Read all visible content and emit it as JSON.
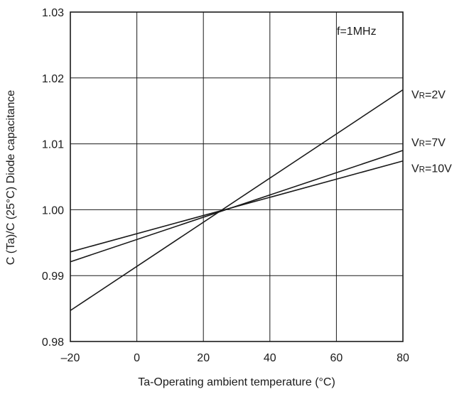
{
  "chart_data": {
    "type": "line",
    "title": "",
    "xlabel": "Ta-Operating ambient temperature (°C)",
    "ylabel": "C (Ta)/C (25°C) Diode capacitance",
    "xlim": [
      -20,
      80
    ],
    "ylim": [
      0.98,
      1.03
    ],
    "xticks": [
      -20,
      0,
      20,
      40,
      60,
      80
    ],
    "xtick_labels": [
      "–20",
      "0",
      "20",
      "40",
      "60",
      "80"
    ],
    "yticks": [
      0.98,
      0.99,
      1.0,
      1.01,
      1.02,
      1.03
    ],
    "ytick_labels": [
      "0.98",
      "0.99",
      "1.00",
      "1.01",
      "1.02",
      "1.03"
    ],
    "grid": true,
    "annotation": "f=1MHz",
    "series": [
      {
        "name": "VR=2V",
        "label_main": "V",
        "label_sub": "R",
        "label_tail": "=2V",
        "x": [
          -20,
          80
        ],
        "y": [
          0.9847,
          1.0182
        ]
      },
      {
        "name": "VR=7V",
        "label_main": "V",
        "label_sub": "R",
        "label_tail": "=7V",
        "x": [
          -20,
          80
        ],
        "y": [
          0.9921,
          1.009
        ]
      },
      {
        "name": "VR=10V",
        "label_main": "V",
        "label_sub": "R",
        "label_tail": "=10V",
        "x": [
          -20,
          80
        ],
        "y": [
          0.9936,
          1.0074
        ]
      }
    ]
  }
}
